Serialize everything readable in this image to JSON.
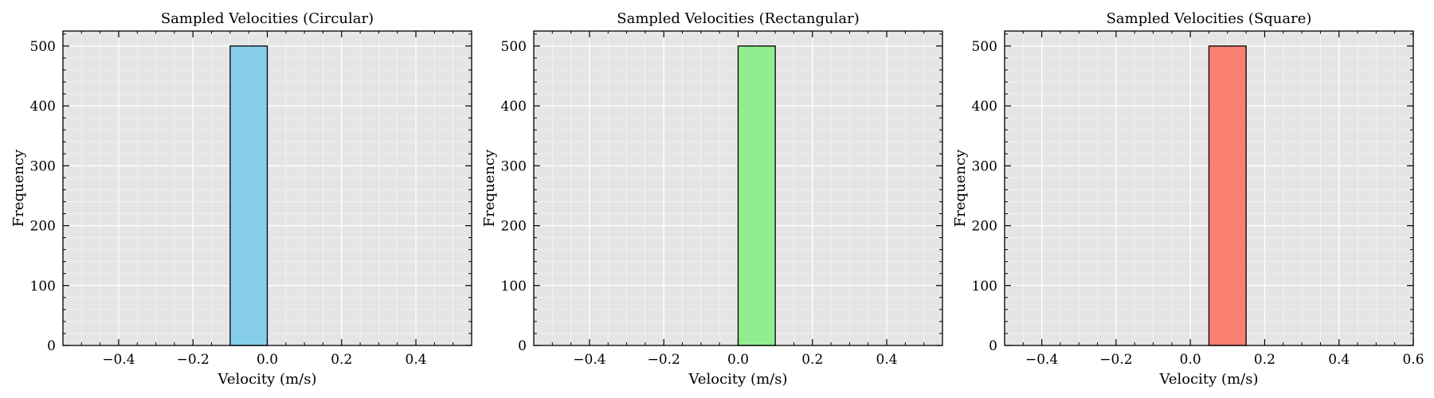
{
  "chart_data": [
    {
      "type": "bar",
      "title": "Sampled Velocities (Circular)",
      "xlabel": "Velocity (m/s)",
      "ylabel": "Frequency",
      "xlim": [
        -0.55,
        0.55
      ],
      "ylim": [
        0,
        525
      ],
      "xticks": [
        -0.4,
        -0.2,
        0.0,
        0.2,
        0.4
      ],
      "xtick_labels": [
        "−0.4",
        "−0.2",
        "0.0",
        "0.2",
        "0.4"
      ],
      "yticks": [
        0,
        100,
        200,
        300,
        400,
        500
      ],
      "ytick_labels": [
        "0",
        "100",
        "200",
        "300",
        "400",
        "500"
      ],
      "bins": [
        {
          "x0": -0.1,
          "x1": 0.0,
          "count": 500
        }
      ],
      "color": "#87ceeb",
      "grid": true
    },
    {
      "type": "bar",
      "title": "Sampled Velocities (Rectangular)",
      "xlabel": "Velocity (m/s)",
      "ylabel": "Frequency",
      "xlim": [
        -0.55,
        0.55
      ],
      "ylim": [
        0,
        525
      ],
      "xticks": [
        -0.4,
        -0.2,
        0.0,
        0.2,
        0.4
      ],
      "xtick_labels": [
        "−0.4",
        "−0.2",
        "0.0",
        "0.2",
        "0.4"
      ],
      "yticks": [
        0,
        100,
        200,
        300,
        400,
        500
      ],
      "ytick_labels": [
        "0",
        "100",
        "200",
        "300",
        "400",
        "500"
      ],
      "bins": [
        {
          "x0": 0.0,
          "x1": 0.1,
          "count": 500
        }
      ],
      "color": "#90ee90",
      "grid": true
    },
    {
      "type": "bar",
      "title": "Sampled Velocities (Square)",
      "xlabel": "Velocity (m/s)",
      "ylabel": "Frequency",
      "xlim": [
        -0.5,
        0.6
      ],
      "ylim": [
        0,
        525
      ],
      "xticks": [
        -0.4,
        -0.2,
        0.0,
        0.2,
        0.4,
        0.6
      ],
      "xtick_labels": [
        "−0.4",
        "−0.2",
        "0.0",
        "0.2",
        "0.4",
        "0.6"
      ],
      "yticks": [
        0,
        100,
        200,
        300,
        400,
        500
      ],
      "ytick_labels": [
        "0",
        "100",
        "200",
        "300",
        "400",
        "500"
      ],
      "bins": [
        {
          "x0": 0.05,
          "x1": 0.15,
          "count": 500
        }
      ],
      "color": "#fa8072",
      "grid": true
    }
  ]
}
